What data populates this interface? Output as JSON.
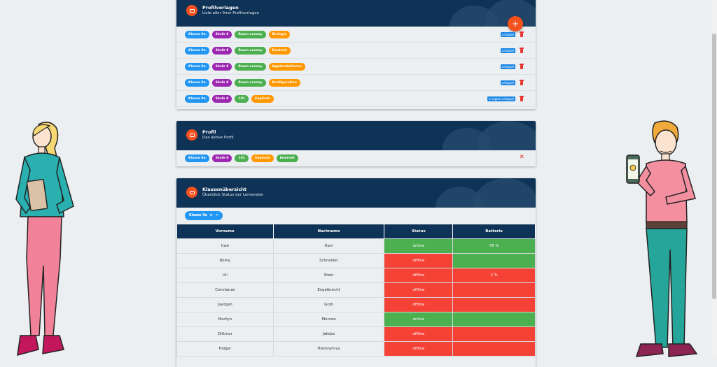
{
  "profilvorlagen": {
    "title": "Profilvorlagen",
    "subtitle": "Liste aller Ihrer Profilvorlagen",
    "add_label": "+",
    "rows": [
      {
        "chips": [
          {
            "label": "Klasse 9a",
            "color": "blue"
          },
          {
            "label": "Stufe 9",
            "color": "purple"
          },
          {
            "label": "Raum xxxxxy",
            "color": "green"
          },
          {
            "label": "Biologie",
            "color": "orange"
          }
        ],
        "tag": "a.happel"
      },
      {
        "chips": [
          {
            "label": "Klasse 9a",
            "color": "blue"
          },
          {
            "label": "Stufe 9",
            "color": "purple"
          },
          {
            "label": "Raum xxxxxy",
            "color": "green"
          },
          {
            "label": "Deutsch",
            "color": "orange"
          }
        ],
        "tag": "a.happel"
      },
      {
        "chips": [
          {
            "label": "Klasse 9a",
            "color": "blue"
          },
          {
            "label": "Stufe 9",
            "color": "purple"
          },
          {
            "label": "Raum xxxxxy",
            "color": "green"
          },
          {
            "label": "AppsInstallieren",
            "color": "orange"
          }
        ],
        "tag": "a.happel"
      },
      {
        "chips": [
          {
            "label": "Klasse 9a",
            "color": "blue"
          },
          {
            "label": "Stufe 9",
            "color": "purple"
          },
          {
            "label": "Raum xxxxxy",
            "color": "green"
          },
          {
            "label": "Konfiguration",
            "color": "orange"
          }
        ],
        "tag": "a.happel"
      },
      {
        "chips": [
          {
            "label": "Klasse 9a",
            "color": "blue"
          },
          {
            "label": "Stufe 9",
            "color": "purple"
          },
          {
            "label": "101",
            "color": "green"
          },
          {
            "label": "Englisch",
            "color": "orange"
          }
        ],
        "tag": "a.happel a.happel"
      }
    ]
  },
  "profil": {
    "title": "Profil",
    "subtitle": "Das aktive Profil",
    "chips": [
      {
        "label": "Klasse 9a",
        "color": "blue"
      },
      {
        "label": "Stufe 9",
        "color": "purple"
      },
      {
        "label": "101",
        "color": "green"
      },
      {
        "label": "Englisch",
        "color": "orange"
      },
      {
        "label": "Internet",
        "color": "green"
      }
    ],
    "close_label": "✕"
  },
  "klassen": {
    "title": "Klassenübersicht",
    "subtitle": "Überblick Status der Lernenden",
    "filter": {
      "label": "Klasse 9a",
      "refresh": "⟳",
      "close": "✕"
    },
    "headers": [
      "Vorname",
      "Nachname",
      "Status",
      "Batterie"
    ],
    "rows": [
      {
        "vorname": "Uwe",
        "nachname": "Hain",
        "status": "online",
        "batterie": "78 %",
        "battery_state": "on"
      },
      {
        "vorname": "Romy",
        "nachname": "Schneider",
        "status": "offline",
        "batterie": "",
        "battery_state": "on"
      },
      {
        "vorname": "Uli",
        "nachname": "Stein",
        "status": "offline",
        "batterie": "2 %",
        "battery_state": "off"
      },
      {
        "vorname": "Constanze",
        "nachname": "Engelbrecht",
        "status": "offline",
        "batterie": "",
        "battery_state": "off"
      },
      {
        "vorname": "Juergen",
        "nachname": "Groh",
        "status": "offline",
        "batterie": "",
        "battery_state": "off"
      },
      {
        "vorname": "Marilyn",
        "nachname": "Monroe",
        "status": "online",
        "batterie": "",
        "battery_state": "on"
      },
      {
        "vorname": "Dittmar",
        "nachname": "Jakobs",
        "status": "offline",
        "batterie": "",
        "battery_state": "off"
      },
      {
        "vorname": "Holger",
        "nachname": "Hieronymus",
        "status": "offline",
        "batterie": "",
        "battery_state": "off"
      }
    ]
  },
  "colors": {
    "header": "#0f3356",
    "accent": "#f4511e",
    "online": "#4caf50",
    "offline": "#f44336"
  }
}
